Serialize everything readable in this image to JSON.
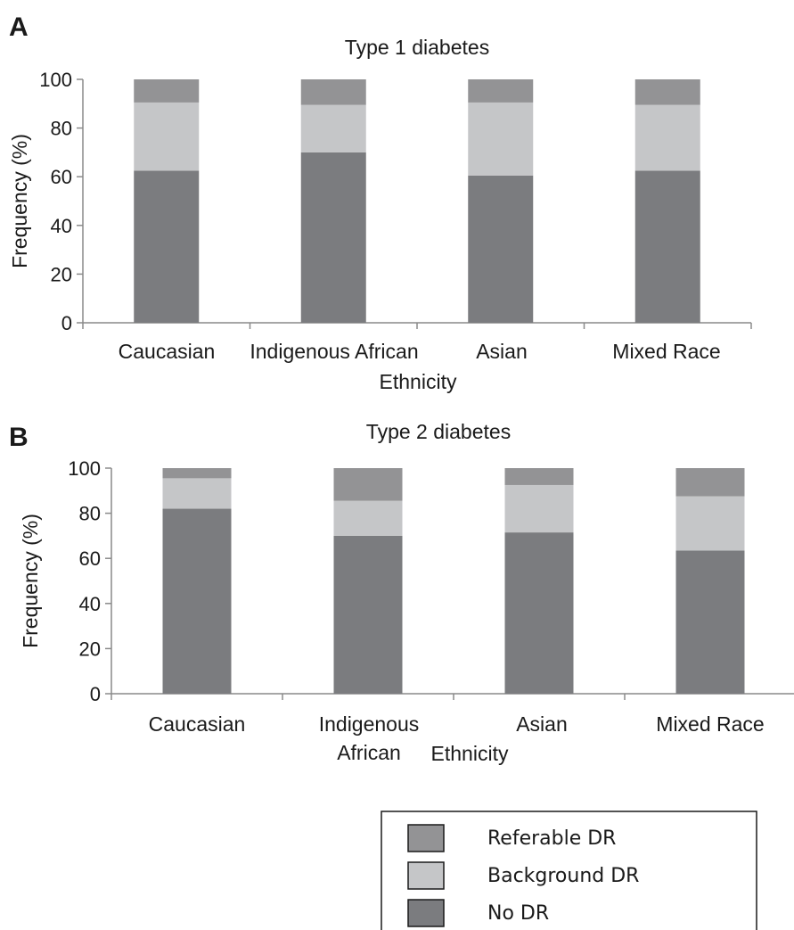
{
  "legend": {
    "items": [
      {
        "label": "Referable DR",
        "color": "#939395"
      },
      {
        "label": "Background DR",
        "color": "#c5c6c8"
      },
      {
        "label": "No DR",
        "color": "#7b7c7f"
      }
    ]
  },
  "chart_data": [
    {
      "panel": "A",
      "type": "bar",
      "stacked": true,
      "title": "Type 1 diabetes",
      "xlabel": "Ethnicity",
      "ylabel": "Frequency (%)",
      "ylim": [
        0,
        100
      ],
      "yticks": [
        0,
        20,
        40,
        60,
        80,
        100
      ],
      "categories": [
        [
          "Caucasian"
        ],
        [
          "Indigenous African"
        ],
        [
          "Asian"
        ],
        [
          "Mixed Race"
        ]
      ],
      "series": [
        {
          "name": "No DR",
          "color": "#7b7c7f",
          "values": [
            62.5,
            70,
            60.5,
            62.5
          ]
        },
        {
          "name": "Background DR",
          "color": "#c5c6c8",
          "values": [
            28,
            19.5,
            30,
            27
          ]
        },
        {
          "name": "Referable DR",
          "color": "#939395",
          "values": [
            9.5,
            10.5,
            9.5,
            10.5
          ]
        }
      ]
    },
    {
      "panel": "B",
      "type": "bar",
      "stacked": true,
      "title": "Type 2 diabetes",
      "xlabel": "Ethnicity",
      "ylabel": "Frequency (%)",
      "ylim": [
        0,
        100
      ],
      "yticks": [
        0,
        20,
        40,
        60,
        80,
        100
      ],
      "categories": [
        [
          "Caucasian"
        ],
        [
          "Indigenous",
          "African"
        ],
        [
          "Asian"
        ],
        [
          "Mixed Race"
        ]
      ],
      "series": [
        {
          "name": "No DR",
          "color": "#7b7c7f",
          "values": [
            82,
            70,
            71.5,
            63.5
          ]
        },
        {
          "name": "Background DR",
          "color": "#c5c6c8",
          "values": [
            13.5,
            15.5,
            21,
            24
          ]
        },
        {
          "name": "Referable DR",
          "color": "#939395",
          "values": [
            4.5,
            14.5,
            7.5,
            12.5
          ]
        }
      ]
    }
  ]
}
